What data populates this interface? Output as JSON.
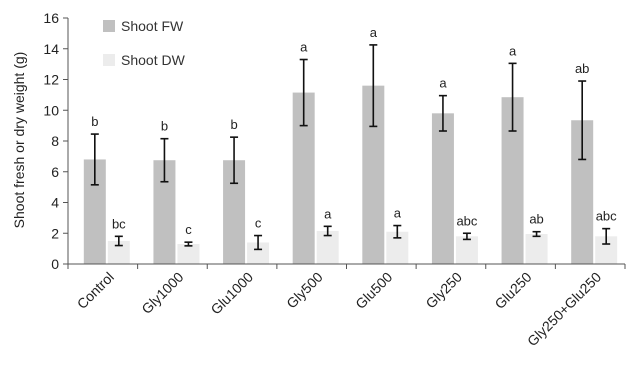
{
  "chart_data": {
    "type": "bar",
    "title": "",
    "xlabel": "",
    "ylabel": "Shoot fresh or dry weight (g)",
    "ylim": [
      0,
      16
    ],
    "yticks": [
      "0",
      "2",
      "4",
      "6",
      "8",
      "10",
      "12",
      "14",
      "16"
    ],
    "grid": false,
    "legend_position": "top-left",
    "categories": [
      "Control",
      "Gly1000",
      "Glu1000",
      "Gly500",
      "Glu500",
      "Gly250",
      "Glu250",
      "Gly250+Glu250"
    ],
    "series": [
      {
        "name": "Shoot FW",
        "color": "#c0c0c0",
        "values": [
          6.8,
          6.75,
          6.75,
          11.15,
          11.6,
          9.8,
          10.85,
          9.35
        ],
        "errors": [
          1.65,
          1.4,
          1.5,
          2.15,
          2.65,
          1.15,
          2.2,
          2.55
        ],
        "significance": [
          "b",
          "b",
          "b",
          "a",
          "a",
          "a",
          "a",
          "ab"
        ]
      },
      {
        "name": "Shoot DW",
        "color": "#ececec",
        "values": [
          1.5,
          1.3,
          1.4,
          2.15,
          2.1,
          1.8,
          1.95,
          1.8
        ],
        "errors": [
          0.3,
          0.12,
          0.45,
          0.3,
          0.4,
          0.2,
          0.15,
          0.5
        ],
        "significance": [
          "bc",
          "c",
          "c",
          "a",
          "a",
          "abc",
          "ab",
          "abc"
        ]
      }
    ]
  }
}
